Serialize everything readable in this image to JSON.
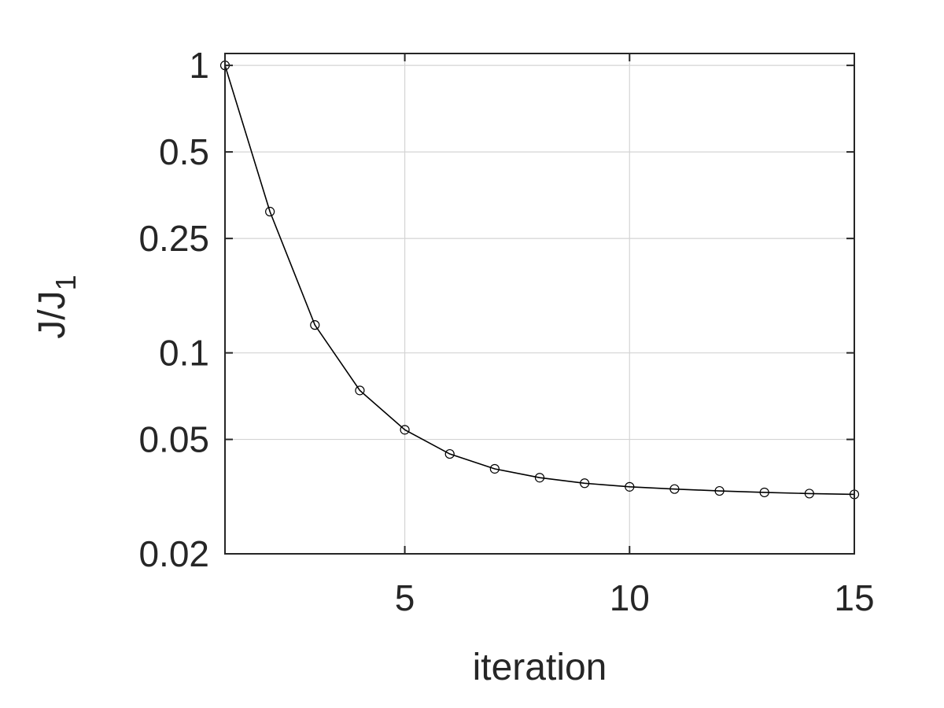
{
  "chart_data": {
    "type": "line",
    "xlabel": "iteration",
    "ylabel": {
      "main": "J/J",
      "sub": "1"
    },
    "xlim": [
      1,
      15
    ],
    "ylim": [
      0.02,
      1.1
    ],
    "yscale": "log",
    "grid": true,
    "xticks": [
      5,
      10,
      15
    ],
    "xtick_labels": [
      "5",
      "10",
      "15"
    ],
    "yticks": [
      0.02,
      0.05,
      0.1,
      0.25,
      0.5,
      1
    ],
    "ytick_labels": [
      "0.02",
      "0.05",
      "0.1",
      "0.25",
      "0.5",
      "1"
    ],
    "series": [
      {
        "color": "#000000",
        "marker": "circle",
        "x": [
          1,
          2,
          3,
          4,
          5,
          6,
          7,
          8,
          9,
          10,
          11,
          12,
          13,
          14,
          15
        ],
        "y": [
          1.0,
          0.31,
          0.125,
          0.074,
          0.054,
          0.0445,
          0.0395,
          0.0368,
          0.0352,
          0.0342,
          0.0336,
          0.0331,
          0.0327,
          0.0324,
          0.0322
        ]
      }
    ]
  }
}
